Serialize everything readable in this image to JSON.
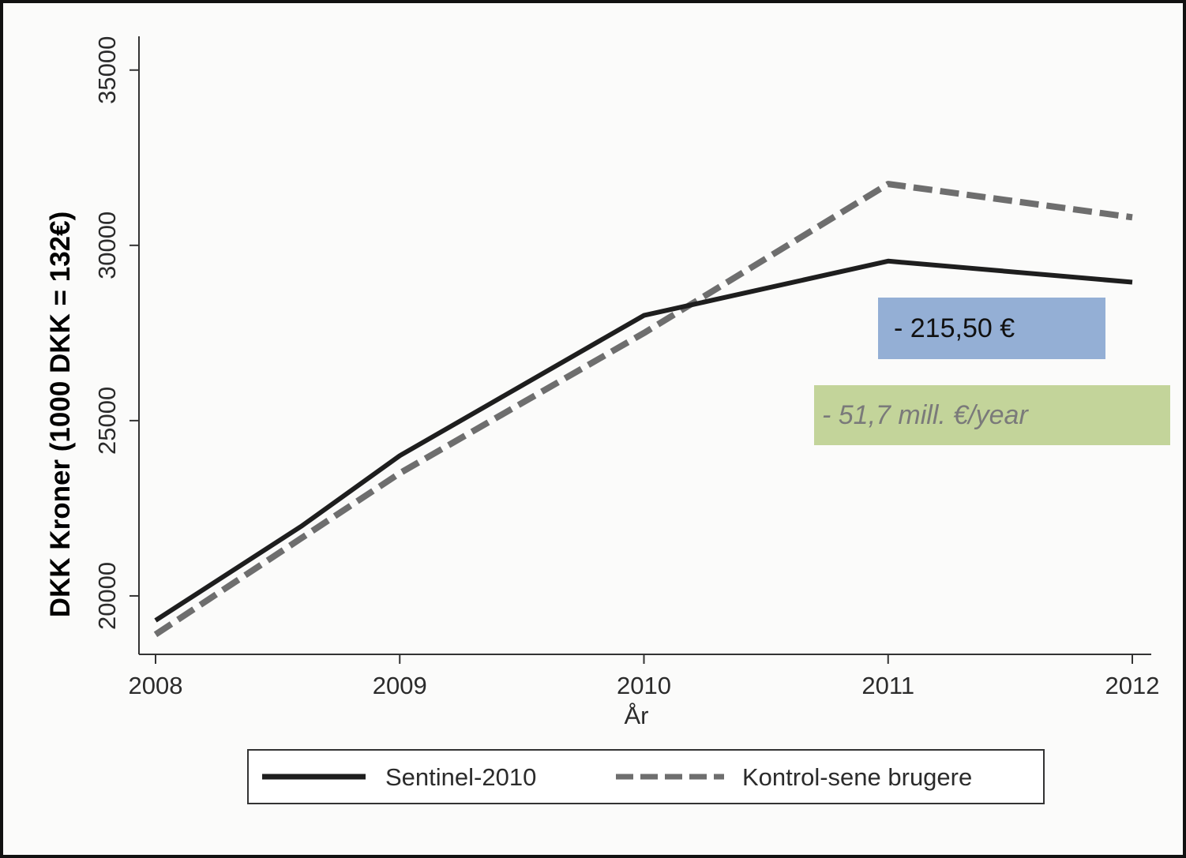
{
  "chart_data": {
    "type": "line",
    "x": [
      2008,
      2009,
      2010,
      2011,
      2012
    ],
    "xlabel": "År",
    "ylabel": "DKK Kroner (1000 DKK = 132€)",
    "xticks": [
      "2008",
      "2009",
      "2010",
      "2011",
      "2012"
    ],
    "yticks": [
      "20000",
      "25000",
      "30000",
      "35000"
    ],
    "ytick_values": [
      20000,
      25000,
      30000,
      35000
    ],
    "xlim": [
      2008,
      2012
    ],
    "ylim": [
      18400,
      35400
    ],
    "grid": false,
    "legend_position": "bottom",
    "series": [
      {
        "name": "Sentinel-2010",
        "x": [
          2008,
          2008.6,
          2009,
          2010,
          2011,
          2012
        ],
        "values": [
          19300,
          22000,
          24000,
          28000,
          29550,
          28950
        ],
        "color": "#1e1e1e",
        "style": "solid"
      },
      {
        "name": "Kontrol-sene brugere",
        "x": [
          2008,
          2009,
          2010,
          2011,
          2012
        ],
        "values": [
          18900,
          23500,
          27500,
          31750,
          30800
        ],
        "color": "#6e6e6e",
        "style": "dashed"
      }
    ],
    "annotations": [
      {
        "text": "- 215,50 €",
        "color": "#94afd5"
      },
      {
        "text": "- 51,7 mill. €/year",
        "color": "#c3d49a"
      }
    ]
  }
}
